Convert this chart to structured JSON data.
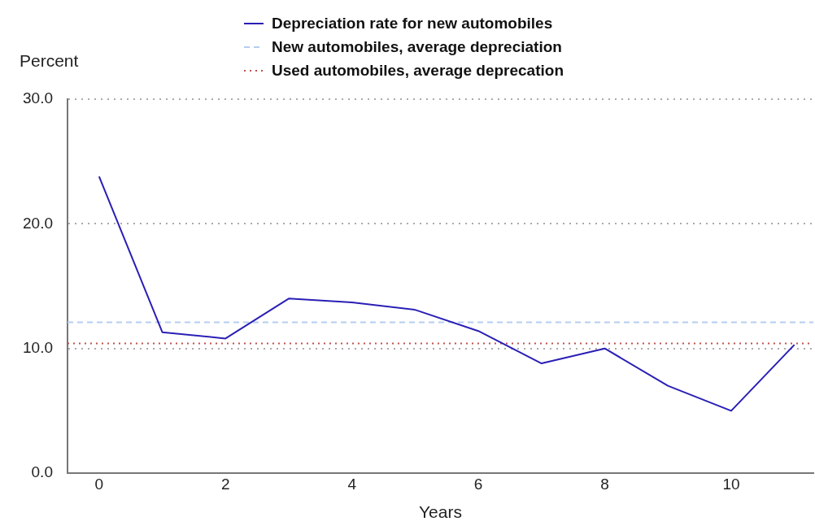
{
  "chart_data": {
    "type": "line",
    "xlabel": "Years",
    "ylabel": "Percent",
    "x": [
      0,
      1,
      2,
      3,
      4,
      5,
      6,
      7,
      8,
      9,
      10,
      11
    ],
    "series": [
      {
        "name": "Depreciation rate for new automobiles",
        "color": "#2a1fb5",
        "values": [
          23.8,
          11.3,
          10.8,
          14.0,
          13.7,
          13.1,
          11.4,
          8.8,
          10.0,
          7.0,
          5.0,
          10.3
        ]
      }
    ],
    "ref_lines": [
      {
        "axis": "y",
        "value": 12.1,
        "label": "New automobiles, average depreciation",
        "color": "#b4cdf0",
        "line_style": "dashed"
      },
      {
        "axis": "y",
        "value": 10.4,
        "label": "Used automobiles, average deprecation",
        "color": "#c0504d",
        "line_style": "dotted"
      }
    ],
    "xlim": [
      -0.5,
      11.3
    ],
    "xticks": [
      0,
      2,
      4,
      6,
      8,
      10
    ],
    "ylim": [
      0,
      30
    ],
    "yticks": [
      {
        "value": 0,
        "label": "0.0"
      },
      {
        "value": 10,
        "label": "10.0"
      },
      {
        "value": 20,
        "label": "20.0"
      },
      {
        "value": 30,
        "label": "30.0"
      }
    ],
    "grid": "y",
    "legend": "top",
    "marker": "none",
    "line_style": "solid"
  }
}
